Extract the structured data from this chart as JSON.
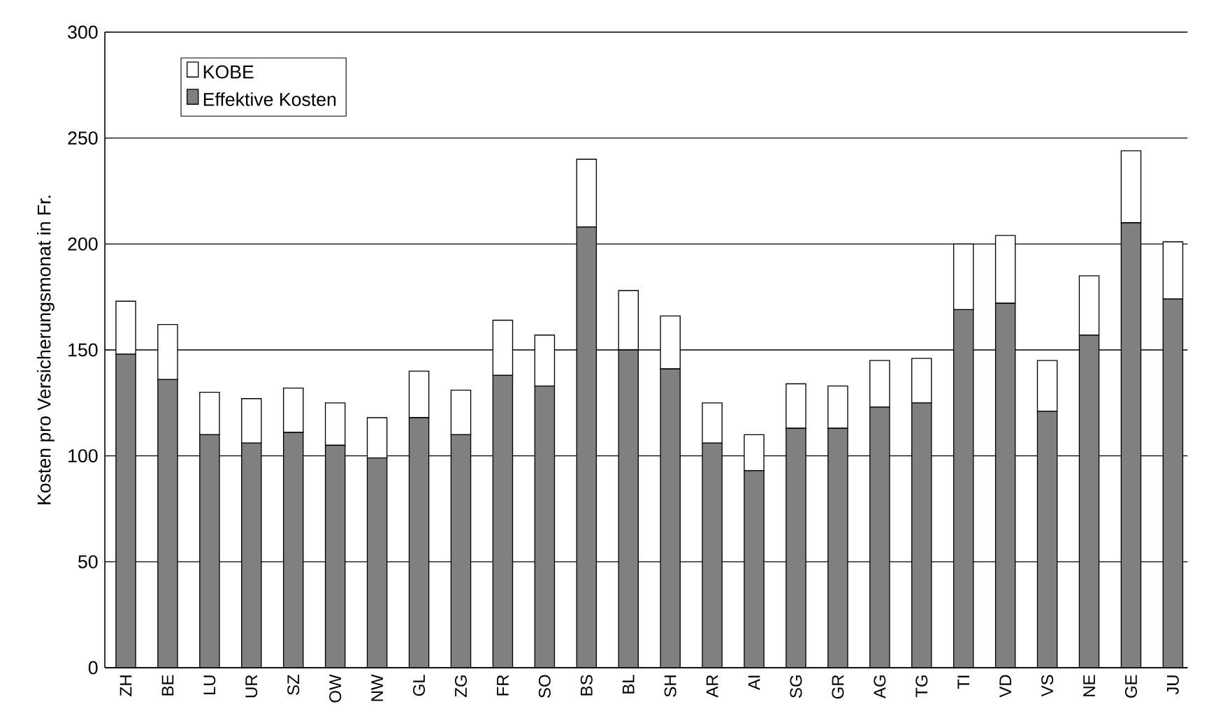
{
  "chart_data": {
    "type": "bar",
    "stacked": true,
    "ylabel": "Kosten pro Versicherungsmonat in Fr.",
    "categories": [
      "ZH",
      "BE",
      "LU",
      "UR",
      "SZ",
      "OW",
      "NW",
      "GL",
      "ZG",
      "FR",
      "SO",
      "BS",
      "BL",
      "SH",
      "AR",
      "AI",
      "SG",
      "GR",
      "AG",
      "TG",
      "TI",
      "VD",
      "VS",
      "NE",
      "GE",
      "JU"
    ],
    "series": [
      {
        "name": "Effektive Kosten",
        "color": "#808080",
        "values": [
          148,
          136,
          110,
          106,
          111,
          105,
          99,
          118,
          110,
          138,
          133,
          208,
          150,
          141,
          106,
          93,
          113,
          113,
          123,
          125,
          169,
          172,
          121,
          157,
          210,
          174
        ]
      },
      {
        "name": "KOBE",
        "color": "#ffffff",
        "values": [
          25,
          26,
          20,
          21,
          21,
          20,
          19,
          22,
          21,
          26,
          24,
          32,
          28,
          25,
          19,
          17,
          21,
          20,
          22,
          21,
          31,
          32,
          24,
          28,
          34,
          27
        ]
      }
    ],
    "ylim": [
      0,
      300
    ],
    "yticks": [
      0,
      50,
      100,
      150,
      200,
      250,
      300
    ],
    "grid": "y",
    "legend": "top left"
  }
}
